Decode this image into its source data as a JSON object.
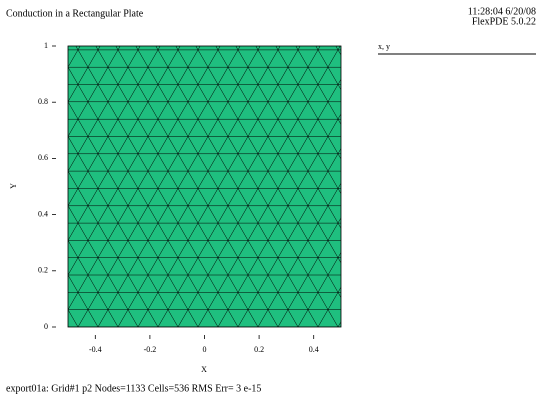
{
  "chart_data": {
    "type": "mesh",
    "title": "Conduction in a Rectangular Plate",
    "timestamp": "11:28:04 6/20/08",
    "version": "FlexPDE 5.0.22",
    "xlabel": "X",
    "ylabel": "Y",
    "legend": "x, y",
    "footer": "export01a:  Grid#1  p2  Nodes=1133 Cells=536 RMS Err= 3 e-15",
    "color": "#1fbf7f",
    "xlim": [
      -0.5,
      0.5
    ],
    "ylim": [
      0,
      1
    ],
    "xticks": [
      -0.4,
      -0.2,
      0,
      0.2,
      0.4
    ],
    "yticks": [
      0,
      0.2,
      0.4,
      0.6,
      0.8,
      1
    ]
  }
}
